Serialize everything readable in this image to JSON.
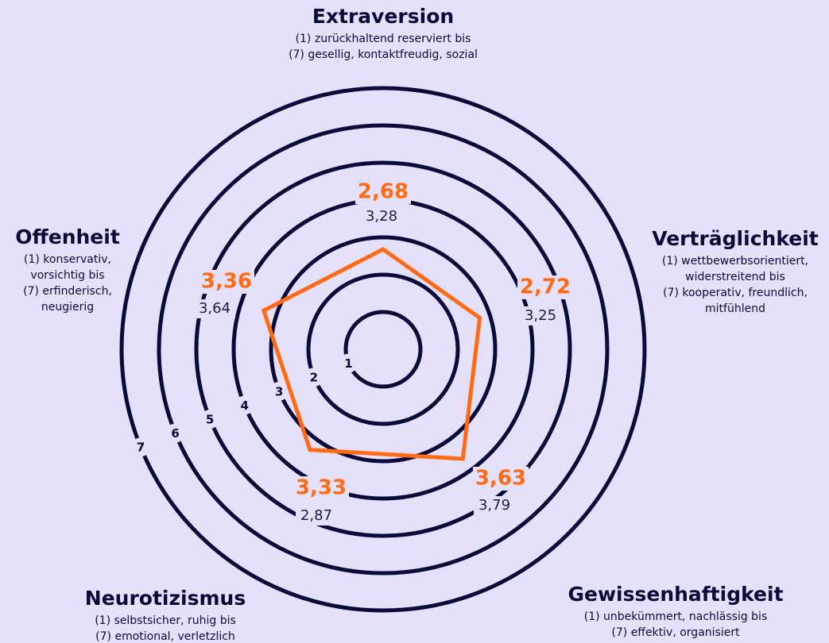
{
  "chart_data": {
    "type": "radar",
    "axes": [
      {
        "name": "Extraversion",
        "description": [
          "(1) zurückhaltend reserviert bis",
          "(7) gesellig, kontaktfreudig, sozial"
        ]
      },
      {
        "name": "Verträglichkeit",
        "description": [
          "(1) wettbewerbsorientiert,",
          "widerstreitend bis",
          "(7) kooperativ, freundlich,",
          "mitfühlend"
        ]
      },
      {
        "name": "Gewissenhaftigkeit",
        "description": [
          "(1) unbekümmert, nachlässig bis",
          "(7) effektiv, organisiert"
        ]
      },
      {
        "name": "Neurotizismus",
        "description": [
          "(1) selbstsicher, ruhig bis",
          "(7) emotional, verletzlich"
        ]
      },
      {
        "name": "Offenheit",
        "description": [
          "(1) konservativ,",
          "vorsichtig bis",
          "(7) erfinderisch,",
          "neugierig"
        ]
      }
    ],
    "rlim": [
      0,
      7
    ],
    "rticks": [
      1,
      2,
      3,
      4,
      5,
      6,
      7
    ],
    "grid_color": "#0b0b3b",
    "series": [
      {
        "color": "#ff6a13",
        "values": [
          2.68,
          2.72,
          3.63,
          3.33,
          3.36
        ],
        "value_labels": [
          "2,68",
          "2,72",
          "3,63",
          "3,33",
          "3,36"
        ]
      },
      {
        "color": "#1c1c4a",
        "values": [
          3.28,
          3.25,
          3.79,
          2.87,
          3.64
        ],
        "value_labels": [
          "3,28",
          "3,25",
          "3,79",
          "2,87",
          "3,64"
        ]
      }
    ]
  }
}
